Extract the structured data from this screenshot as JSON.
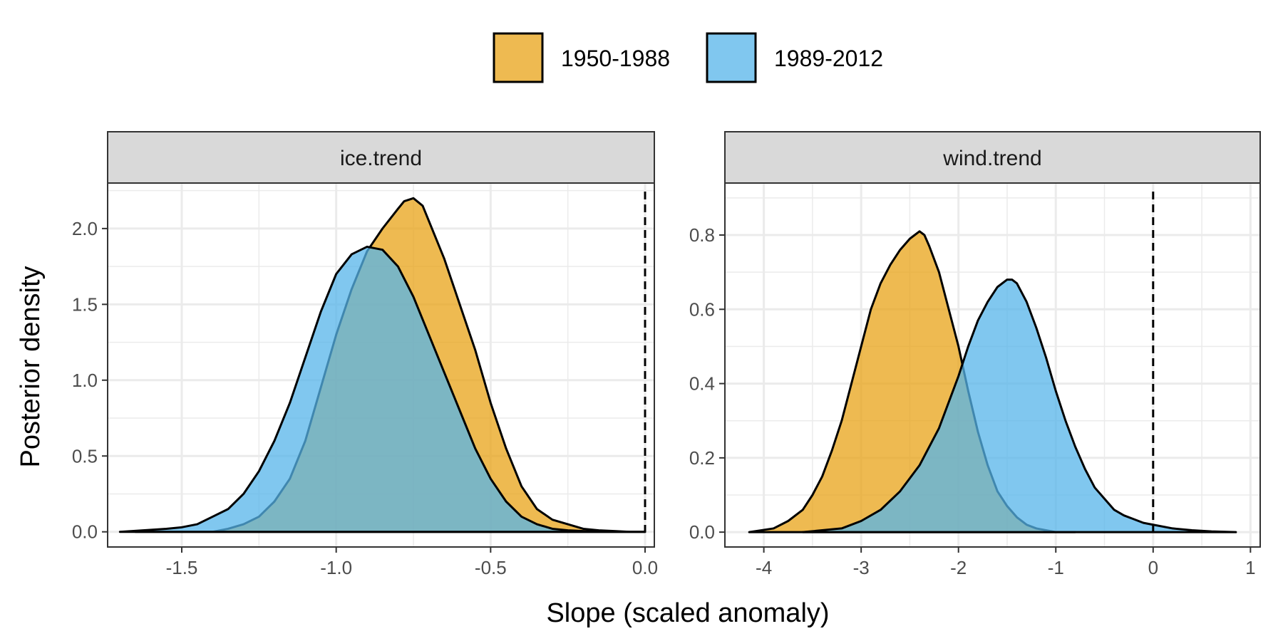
{
  "chart_data": {
    "type": "area",
    "xlabel": "Slope (scaled anomaly)",
    "ylabel": "Posterior density",
    "legend": {
      "position": "top",
      "entries": [
        {
          "label": "1950-1988",
          "color": "#E8A317"
        },
        {
          "label": "1989-2012",
          "color": "#56B4E9"
        }
      ]
    },
    "grid": true,
    "reference_line": {
      "x": 0,
      "style": "dashed"
    },
    "panels": [
      {
        "strip": "ice.trend",
        "xlim": [
          -1.74,
          0.03
        ],
        "ylim": [
          -0.1,
          2.3
        ],
        "xticks": [
          -1.5,
          -1.0,
          -0.5,
          0.0
        ],
        "xtick_labels": [
          "-1.5",
          "-1.0",
          "-0.5",
          "0.0"
        ],
        "yticks": [
          0,
          0.5,
          1.0,
          1.5,
          2.0
        ],
        "ytick_labels": [
          "0.0",
          "0.5",
          "1.0",
          "1.5",
          "2.0"
        ],
        "series": [
          {
            "name": "1950-1988",
            "x": [
              -1.65,
              -1.5,
              -1.4,
              -1.35,
              -1.3,
              -1.25,
              -1.2,
              -1.15,
              -1.1,
              -1.05,
              -1.0,
              -0.95,
              -0.9,
              -0.85,
              -0.8,
              -0.78,
              -0.75,
              -0.72,
              -0.7,
              -0.65,
              -0.6,
              -0.55,
              -0.5,
              -0.45,
              -0.4,
              -0.35,
              -0.3,
              -0.25,
              -0.2,
              -0.15,
              -0.1,
              -0.05,
              0.0
            ],
            "y": [
              0.0,
              0.0,
              0.0,
              0.02,
              0.05,
              0.1,
              0.2,
              0.35,
              0.6,
              0.95,
              1.3,
              1.6,
              1.85,
              2.0,
              2.13,
              2.18,
              2.2,
              2.15,
              2.05,
              1.8,
              1.5,
              1.2,
              0.85,
              0.55,
              0.3,
              0.15,
              0.08,
              0.05,
              0.02,
              0.01,
              0.005,
              0.0,
              0.0
            ]
          },
          {
            "name": "1989-2012",
            "x": [
              -1.7,
              -1.55,
              -1.5,
              -1.45,
              -1.4,
              -1.35,
              -1.3,
              -1.25,
              -1.2,
              -1.15,
              -1.1,
              -1.05,
              -1.0,
              -0.95,
              -0.9,
              -0.85,
              -0.8,
              -0.75,
              -0.7,
              -0.65,
              -0.6,
              -0.55,
              -0.5,
              -0.45,
              -0.4,
              -0.35,
              -0.3,
              -0.25,
              -0.2,
              -0.15,
              -0.1,
              -0.05,
              0.0
            ],
            "y": [
              0.0,
              0.02,
              0.03,
              0.05,
              0.1,
              0.15,
              0.25,
              0.4,
              0.6,
              0.85,
              1.15,
              1.45,
              1.7,
              1.83,
              1.88,
              1.86,
              1.75,
              1.55,
              1.3,
              1.05,
              0.8,
              0.55,
              0.35,
              0.2,
              0.1,
              0.05,
              0.02,
              0.01,
              0.005,
              0.0,
              0.0,
              0.0,
              0.0
            ]
          }
        ]
      },
      {
        "strip": "wind.trend",
        "xlim": [
          -4.4,
          1.1
        ],
        "ylim": [
          -0.04,
          0.94
        ],
        "xticks": [
          -4,
          -3,
          -2,
          -1,
          0,
          1
        ],
        "xtick_labels": [
          "-4",
          "-3",
          "-2",
          "-1",
          "0",
          "1"
        ],
        "yticks": [
          0,
          0.2,
          0.4,
          0.6,
          0.8
        ],
        "ytick_labels": [
          "0.0",
          "0.2",
          "0.4",
          "0.6",
          "0.8"
        ],
        "series": [
          {
            "name": "1950-1988",
            "x": [
              -4.15,
              -3.9,
              -3.75,
              -3.6,
              -3.5,
              -3.4,
              -3.3,
              -3.2,
              -3.1,
              -3.0,
              -2.9,
              -2.8,
              -2.7,
              -2.6,
              -2.5,
              -2.45,
              -2.4,
              -2.35,
              -2.3,
              -2.2,
              -2.1,
              -2.0,
              -1.9,
              -1.8,
              -1.7,
              -1.6,
              -1.5,
              -1.4,
              -1.3,
              -1.2,
              -1.0,
              -0.8
            ],
            "y": [
              0.0,
              0.01,
              0.03,
              0.06,
              0.1,
              0.15,
              0.22,
              0.3,
              0.4,
              0.5,
              0.6,
              0.67,
              0.72,
              0.76,
              0.79,
              0.8,
              0.81,
              0.8,
              0.77,
              0.7,
              0.6,
              0.5,
              0.38,
              0.27,
              0.18,
              0.11,
              0.07,
              0.04,
              0.02,
              0.01,
              0.0,
              0.0
            ]
          },
          {
            "name": "1989-2012",
            "x": [
              -3.6,
              -3.2,
              -3.0,
              -2.8,
              -2.6,
              -2.4,
              -2.2,
              -2.0,
              -1.9,
              -1.8,
              -1.7,
              -1.6,
              -1.5,
              -1.45,
              -1.4,
              -1.3,
              -1.2,
              -1.1,
              -1.0,
              -0.9,
              -0.8,
              -0.7,
              -0.6,
              -0.5,
              -0.4,
              -0.3,
              -0.2,
              -0.1,
              0.0,
              0.2,
              0.4,
              0.6,
              0.85
            ],
            "y": [
              0.0,
              0.01,
              0.03,
              0.06,
              0.11,
              0.18,
              0.28,
              0.42,
              0.5,
              0.57,
              0.62,
              0.66,
              0.68,
              0.68,
              0.67,
              0.62,
              0.55,
              0.47,
              0.38,
              0.3,
              0.23,
              0.17,
              0.12,
              0.09,
              0.06,
              0.045,
              0.035,
              0.025,
              0.02,
              0.01,
              0.005,
              0.002,
              0.0
            ]
          }
        ]
      }
    ]
  }
}
